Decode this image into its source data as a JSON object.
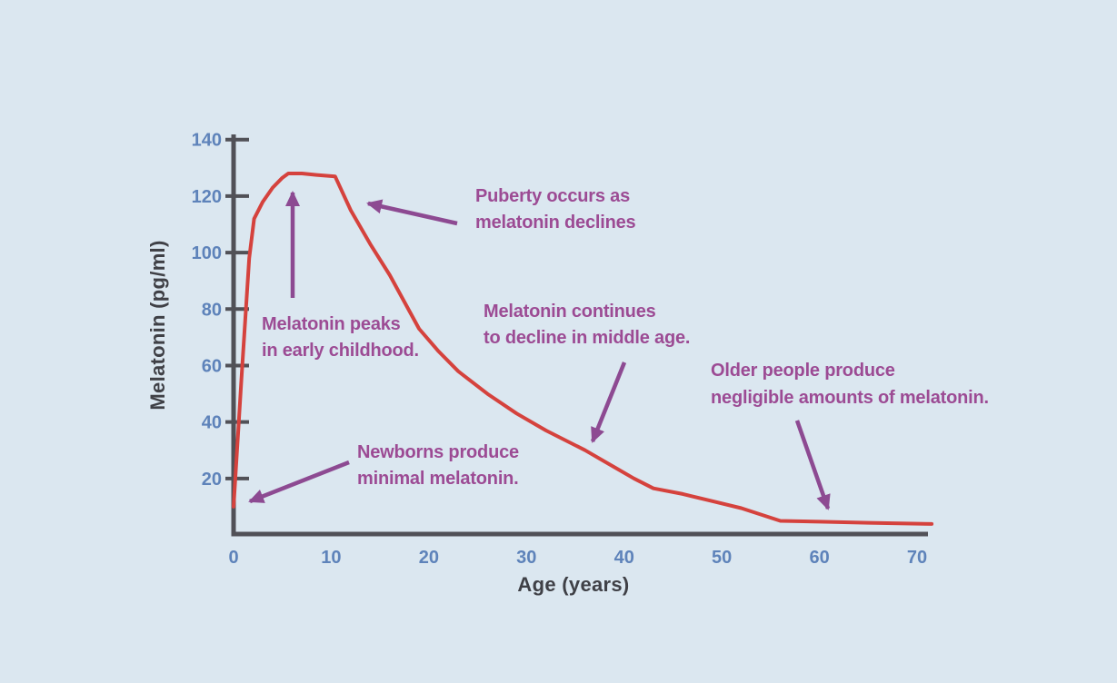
{
  "colors": {
    "background": "#dbe7f0",
    "curve": "#d5423d",
    "annotation_text": "#9c4b94",
    "arrow": "#8d4a92",
    "tick_label": "#5e83ba",
    "axis": "#515157",
    "axis_label": "#3f4046"
  },
  "chart_data": {
    "type": "line",
    "title": "",
    "xlabel": "Age (years)",
    "ylabel": "Melatonin (pg/ml)",
    "x_ticks": [
      0,
      10,
      20,
      30,
      40,
      50,
      60,
      70
    ],
    "y_ticks": [
      20,
      40,
      60,
      80,
      100,
      120,
      140
    ],
    "xlim": [
      0,
      71.5
    ],
    "ylim": [
      0,
      140
    ],
    "grid": false,
    "legend": false,
    "series": [
      {
        "name": "Melatonin level",
        "color": "#d5423d",
        "points": [
          [
            0,
            10
          ],
          [
            0.8,
            55
          ],
          [
            1.6,
            98
          ],
          [
            2.1,
            112
          ],
          [
            3,
            118
          ],
          [
            4,
            123
          ],
          [
            5,
            126.5
          ],
          [
            5.6,
            128
          ],
          [
            7,
            128
          ],
          [
            8.5,
            127.5
          ],
          [
            10.4,
            127
          ],
          [
            12,
            115
          ],
          [
            14,
            103
          ],
          [
            16,
            92
          ],
          [
            19,
            73
          ],
          [
            21,
            65
          ],
          [
            23,
            58
          ],
          [
            26,
            50
          ],
          [
            29,
            43
          ],
          [
            32,
            37
          ],
          [
            36,
            30
          ],
          [
            39,
            24
          ],
          [
            41,
            20
          ],
          [
            43,
            16.5
          ],
          [
            46,
            14.5
          ],
          [
            49,
            12
          ],
          [
            52,
            9.5
          ],
          [
            56,
            5
          ],
          [
            60,
            4.7
          ],
          [
            65,
            4.3
          ],
          [
            71.5,
            3.9
          ]
        ]
      }
    ],
    "annotations": [
      {
        "id": "peaks",
        "lines": [
          "Melatonin peaks",
          "in early childhood."
        ],
        "points_at": {
          "age": 5.8,
          "value": 128
        }
      },
      {
        "id": "puberty",
        "lines": [
          "Puberty occurs as",
          "melatonin declines"
        ],
        "points_at": {
          "age": 13,
          "value": 110
        }
      },
      {
        "id": "middle-age",
        "lines": [
          "Melatonin continues",
          "to decline in middle age."
        ],
        "points_at": {
          "age": 37,
          "value": 30
        }
      },
      {
        "id": "older",
        "lines": [
          "Older people produce",
          "negligible amounts of melatonin."
        ],
        "points_at": {
          "age": 61,
          "value": 6
        }
      },
      {
        "id": "newborns",
        "lines": [
          "Newborns produce",
          "minimal melatonin."
        ],
        "points_at": {
          "age": 1,
          "value": 11
        }
      }
    ]
  }
}
